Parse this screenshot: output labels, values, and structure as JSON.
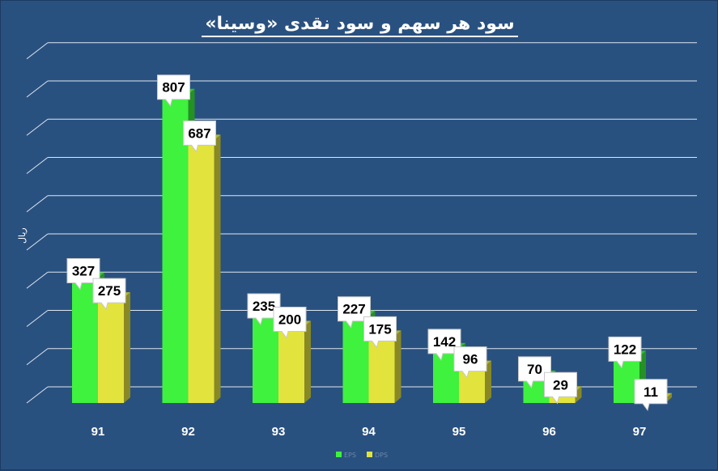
{
  "chart_data": {
    "type": "bar",
    "title": "سود هر سهم و سود نقدی «وسینا»",
    "ylabel": "ریال",
    "categories": [
      "91",
      "92",
      "93",
      "94",
      "95",
      "96",
      "97"
    ],
    "series": [
      {
        "name": "EPS",
        "values": [
          327,
          807,
          235,
          227,
          142,
          70,
          122
        ],
        "color": "#3ef23e"
      },
      {
        "name": "DPS",
        "values": [
          275,
          687,
          200,
          175,
          96,
          29,
          11
        ],
        "color": "#e3e33e"
      }
    ],
    "ylim": [
      0,
      900
    ],
    "grid": true,
    "legend_position": "bottom"
  }
}
